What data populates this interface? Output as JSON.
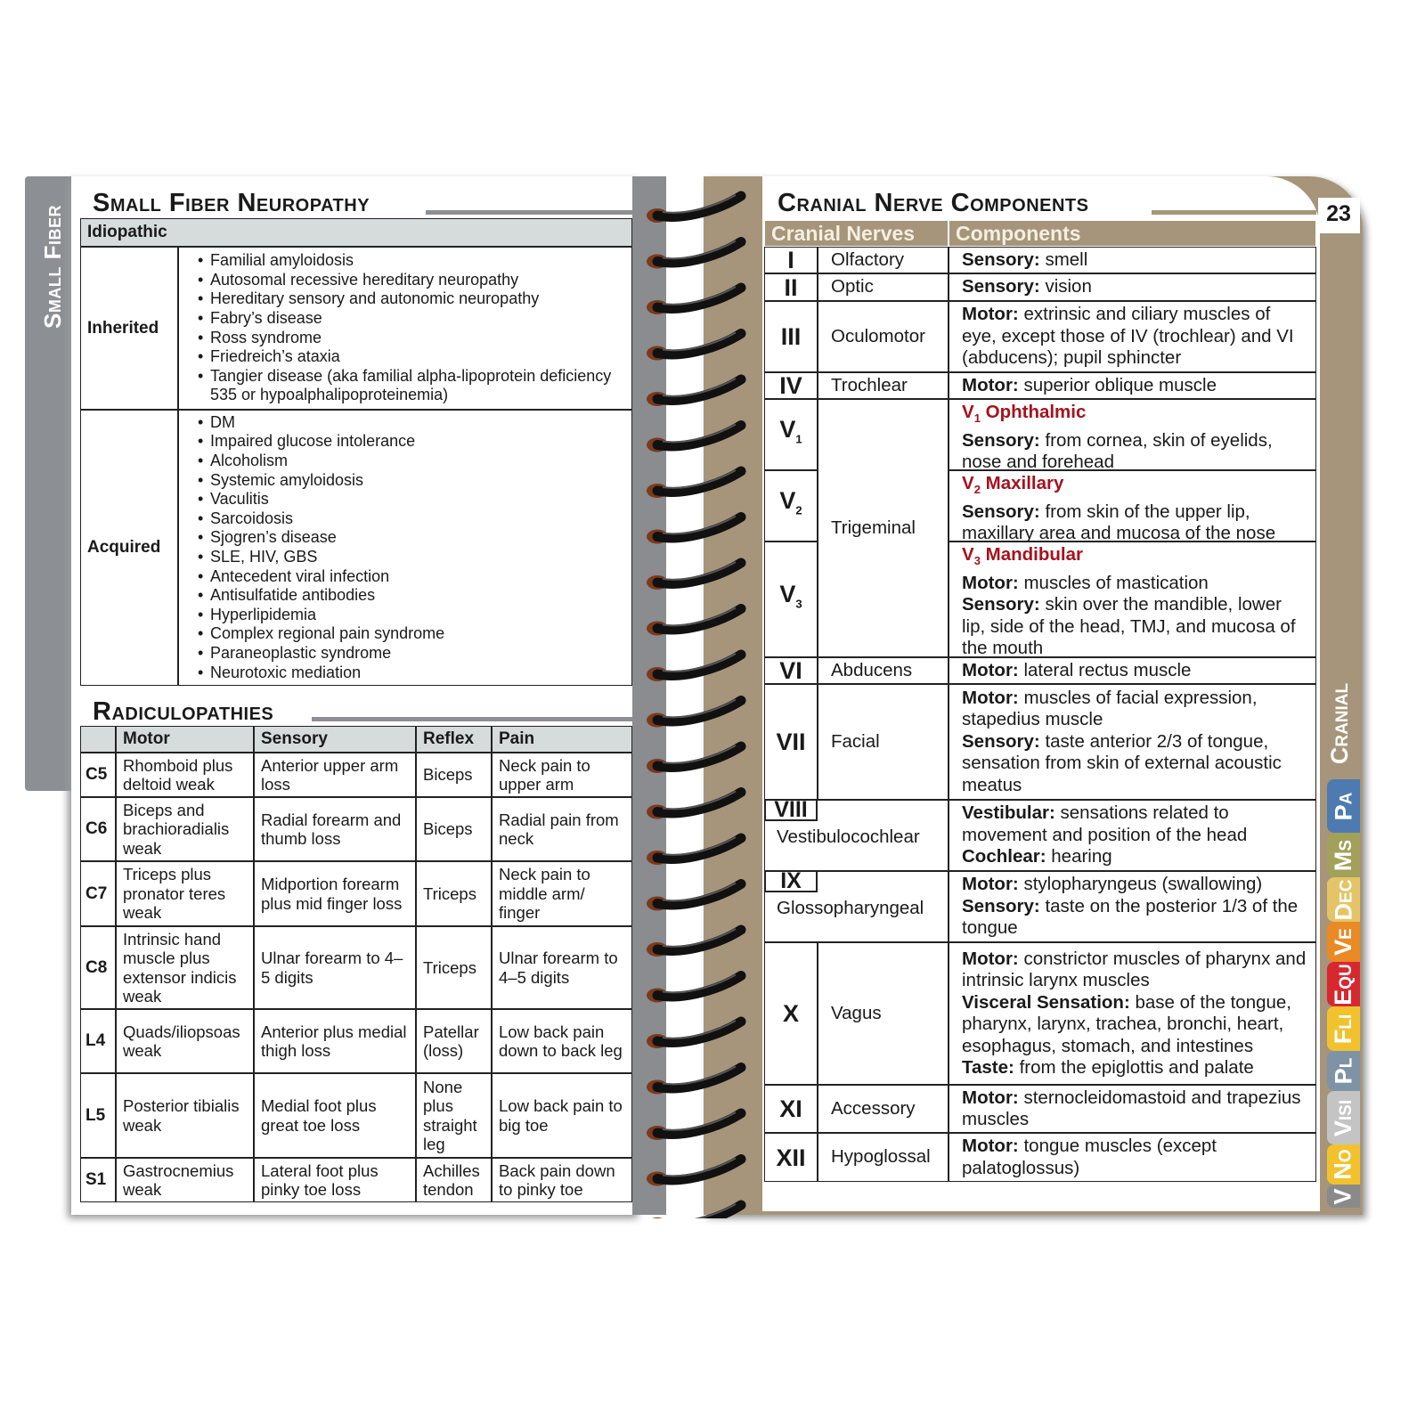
{
  "left_page": {
    "side_tab": "Small Fiber",
    "small_fiber": {
      "title": "Small Fiber Neuropathy",
      "rows": [
        {
          "label": "Idiopathic"
        },
        {
          "label": "Inherited",
          "items": [
            "Familial amyloidosis",
            "Autosomal recessive hereditary neuropathy",
            "Hereditary sensory and autonomic neuropathy",
            "Fabry’s disease",
            "Ross syndrome",
            "Friedreich’s ataxia",
            "Tangier disease (aka familial alpha-lipoprotein deficiency 535 or hypoalphalipoproteinemia)"
          ]
        },
        {
          "label": "Acquired",
          "items": [
            "DM",
            "Impaired glucose intolerance",
            "Alcoholism",
            "Systemic amyloidosis",
            "Vaculitis",
            "Sarcoidosis",
            "Sjogren’s disease",
            "SLE, HIV, GBS",
            "Antecedent viral infection",
            "Antisulfatide antibodies",
            "Hyperlipidemia",
            "Complex regional pain syndrome",
            "Paraneoplastic syndrome",
            "Neurotoxic mediation"
          ]
        }
      ]
    },
    "radiculopathies": {
      "title": "Radiculopathies",
      "headers": [
        "Motor",
        "Sensory",
        "Reflex",
        "Pain"
      ],
      "rows": [
        {
          "level": "C5",
          "cells": [
            "Rhomboid plus deltoid weak",
            "Anterior upper arm loss",
            "Biceps",
            "Neck pain to upper arm"
          ]
        },
        {
          "level": "C6",
          "cells": [
            "Biceps and brachioradialis weak",
            "Radial forearm and thumb loss",
            "Biceps",
            "Radial pain from neck"
          ]
        },
        {
          "level": "C7",
          "cells": [
            "Triceps plus pronator teres weak",
            "Midportion forearm plus mid finger loss",
            "Triceps",
            "Neck pain to middle arm/ finger"
          ]
        },
        {
          "level": "C8",
          "cells": [
            "Intrinsic hand muscle plus extensor indicis weak",
            "Ulnar forearm to 4–5 digits",
            "Triceps",
            "Ulnar forearm to 4–5 digits"
          ]
        },
        {
          "level": "L4",
          "cells": [
            "Quads/iliopsoas weak",
            "Anterior plus medial thigh loss",
            "Patellar (loss)",
            "Low back pain down to back leg"
          ]
        },
        {
          "level": "L5",
          "cells": [
            "Posterior tibialis weak",
            "Medial foot plus great toe loss",
            "None plus straight leg",
            "Low back pain to big toe"
          ]
        },
        {
          "level": "S1",
          "cells": [
            "Gastrocnemius weak",
            "Lateral foot plus pinky toe loss",
            "Achilles tendon",
            "Back pain down to pinky toe"
          ]
        }
      ]
    }
  },
  "right_page": {
    "page_number": "23",
    "title": "Cranial Nerve Components",
    "headers": [
      "Cranial Nerves",
      "Components"
    ],
    "nerves": [
      {
        "numeral": "I",
        "name": "Olfactory",
        "components": [
          {
            "label": "Sensory:",
            "text": "smell"
          }
        ]
      },
      {
        "numeral": "II",
        "name": "Optic",
        "components": [
          {
            "label": "Sensory:",
            "text": "vision"
          }
        ]
      },
      {
        "numeral": "III",
        "name": "Oculomotor",
        "components": [
          {
            "label": "Motor:",
            "text": "extrinsic and ciliary muscles of eye, except those of IV (trochlear) and VI (abducens); pupil sphincter"
          }
        ]
      },
      {
        "numeral": "IV",
        "name": "Trochlear",
        "components": [
          {
            "label": "Motor:",
            "text": "superior oblique muscle"
          }
        ]
      },
      {
        "name": "Trigeminal",
        "branches": [
          {
            "numeral": "V",
            "subscript": "1",
            "heading": "Ophthalmic",
            "components": [
              {
                "label": "Sensory:",
                "text": "from cornea, skin of eyelids, nose and forehead"
              }
            ]
          },
          {
            "numeral": "V",
            "subscript": "2",
            "heading": "Maxillary",
            "components": [
              {
                "label": "Sensory:",
                "text": "from skin of the upper lip, maxillary area and mucosa of the nose"
              }
            ]
          },
          {
            "numeral": "V",
            "subscript": "3",
            "heading": "Mandibular",
            "components": [
              {
                "label": "Motor:",
                "text": "muscles of mastication"
              },
              {
                "label": "Sensory:",
                "text": "skin over the mandible, lower lip, side of the head, TMJ, and mucosa of the mouth"
              }
            ]
          }
        ]
      },
      {
        "numeral": "VI",
        "name": "Abducens",
        "components": [
          {
            "label": "Motor:",
            "text": "lateral rectus muscle"
          }
        ]
      },
      {
        "numeral": "VII",
        "name": "Facial",
        "components": [
          {
            "label": "Motor:",
            "text": "muscles of facial expression, stapedius muscle"
          },
          {
            "label": "Sensory:",
            "text": "taste anterior 2/3 of tongue, sensation from skin of external acoustic meatus"
          }
        ]
      },
      {
        "numeral": "VIII",
        "name": "Vestibulocochlear",
        "components": [
          {
            "label": "Vestibular:",
            "text": "sensations related to movement and position of the head"
          },
          {
            "label": "Cochlear:",
            "text": "hearing"
          }
        ]
      },
      {
        "numeral": "IX",
        "name": "Glossopharyngeal",
        "components": [
          {
            "label": "Motor:",
            "text": "stylopharyngeus (swallowing)"
          },
          {
            "label": "Sensory:",
            "text": "taste on the posterior 1/3 of the tongue"
          }
        ]
      },
      {
        "numeral": "X",
        "name": "Vagus",
        "components": [
          {
            "label": "Motor:",
            "text": "constrictor muscles of pharynx and intrinsic larynx muscles"
          },
          {
            "label": "Visceral Sensation:",
            "text": "base of the tongue, pharynx, larynx, trachea, bronchi, heart, esophagus, stomach, and intestines"
          },
          {
            "label": "Taste:",
            "text": "from the epiglottis and palate"
          }
        ]
      },
      {
        "numeral": "XI",
        "name": "Accessory",
        "components": [
          {
            "label": "Motor:",
            "text": "sternocleidomastoid and trapezius muscles"
          }
        ]
      },
      {
        "numeral": "XII",
        "name": "Hypoglossal",
        "components": [
          {
            "label": "Motor:",
            "text": "tongue muscles (except palatoglossus)"
          }
        ]
      }
    ],
    "tabs": [
      "Cranial",
      "Pa",
      "Ms",
      "Dec",
      "Ve",
      "Equ",
      "Fli",
      "Pl",
      "Visi",
      "No",
      "V"
    ]
  }
}
